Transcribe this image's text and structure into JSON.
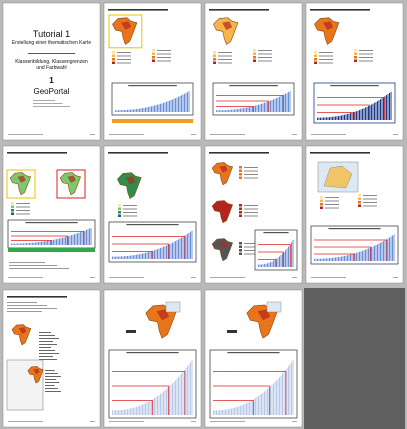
{
  "title_page": {
    "title": "Tutorial 1",
    "subtitle": "Erstellung einer thematischen Karte",
    "topic": "Klassenbildung, Klassengrenzen und Farbwahl",
    "number": "1",
    "portal": "GeoPortal"
  }
}
